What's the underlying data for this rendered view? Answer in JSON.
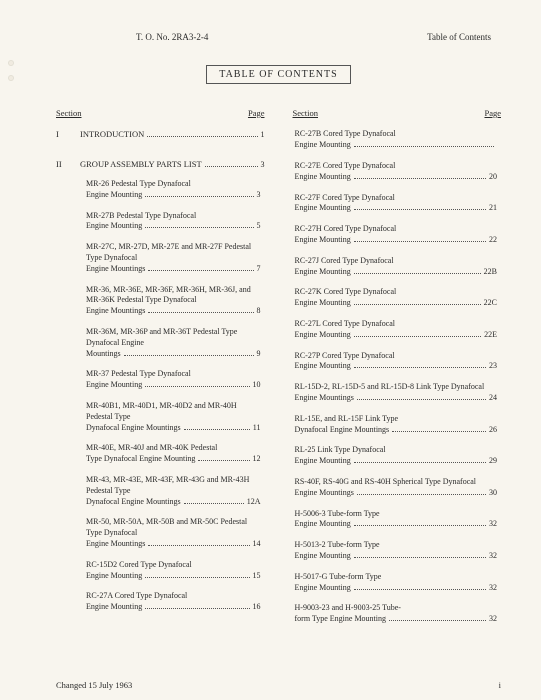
{
  "header": {
    "to_number": "T. O. No. 2RA3-2-4",
    "right_label": "Table of Contents"
  },
  "title": "TABLE OF CONTENTS",
  "column_headers": {
    "section": "Section",
    "page": "Page"
  },
  "sections": [
    {
      "num": "I",
      "title": "INTRODUCTION",
      "page": "1"
    },
    {
      "num": "II",
      "title": "GROUP ASSEMBLY PARTS LIST",
      "page": "3"
    }
  ],
  "left_entries": [
    {
      "text": "MR-26 Pedestal Type Dynafocal",
      "last": "Engine Mounting",
      "page": "3"
    },
    {
      "text": "MR-27B Pedestal Type Dynafocal",
      "last": "Engine Mounting",
      "page": "5"
    },
    {
      "text": "MR-27C, MR-27D, MR-27E and MR-27F Pedestal Type Dynafocal",
      "last": "Engine Mountings",
      "page": "7"
    },
    {
      "text": "MR-36, MR-36E, MR-36F, MR-36H, MR-36J, and MR-36K Pedestal Type Dynafocal",
      "last": "Engine Mountings",
      "page": "8"
    },
    {
      "text": "MR-36M, MR-36P and MR-36T Pedestal Type Dynafocal Engine",
      "last": "Mountings",
      "page": "9"
    },
    {
      "text": "MR-37 Pedestal Type Dynafocal",
      "last": "Engine Mounting",
      "page": "10"
    },
    {
      "text": "MR-40B1, MR-40D1, MR-40D2 and MR-40H Pedestal Type",
      "last": "Dynafocal Engine Mountings",
      "page": "11"
    },
    {
      "text": "MR-40E, MR-40J and MR-40K Pedestal",
      "last": "Type Dynafocal Engine Mounting",
      "page": "12"
    },
    {
      "text": "MR-43, MR-43E, MR-43F, MR-43G and MR-43H Pedestal Type",
      "last": "Dynafocal Engine Mountings",
      "page": "12A"
    },
    {
      "text": "MR-50, MR-50A, MR-50B and MR-50C Pedestal Type Dynafocal",
      "last": "Engine Mountings",
      "page": "14"
    },
    {
      "text": "RC-15D2 Cored Type Dynafocal",
      "last": "Engine Mounting",
      "page": "15"
    },
    {
      "text": "RC-27A Cored Type Dynafocal",
      "last": "Engine Mounting",
      "page": "16"
    }
  ],
  "right_entries": [
    {
      "text": "RC-27B Cored Type Dynafocal",
      "last": "Engine Mounting",
      "page": ""
    },
    {
      "text": "RC-27E Cored Type Dynafocal",
      "last": "Engine Mounting",
      "page": "20"
    },
    {
      "text": "RC-27F Cored Type Dynafocal",
      "last": "Engine Mounting",
      "page": "21"
    },
    {
      "text": "RC-27H Cored Type Dynafocal",
      "last": "Engine Mounting",
      "page": "22"
    },
    {
      "text": "RC-27J Cored Type Dynafocal",
      "last": "Engine Mounting",
      "page": "22B"
    },
    {
      "text": "RC-27K Cored Type Dynafocal",
      "last": "Engine Mounting",
      "page": "22C"
    },
    {
      "text": "RC-27L Cored Type Dynafocal",
      "last": "Engine Mounting",
      "page": "22E"
    },
    {
      "text": "RC-27P Cored Type Dynafocal",
      "last": "Engine Mounting",
      "page": "23"
    },
    {
      "text": "RL-15D-2, RL-15D-5 and RL-15D-8 Link Type Dynafocal",
      "last": "Engine Mountings",
      "page": "24"
    },
    {
      "text": "RL-15E, and RL-15F Link Type",
      "last": "Dynafocal Engine Mountings",
      "page": "26"
    },
    {
      "text": "RL-25 Link Type Dynafocal",
      "last": "Engine Mounting",
      "page": "29"
    },
    {
      "text": "RS-40F, RS-40G and RS-40H Spherical Type Dynafocal",
      "last": "Engine Mountings",
      "page": "30"
    },
    {
      "text": "H-5006-3 Tube-form Type",
      "last": "Engine Mounting",
      "page": "32"
    },
    {
      "text": "H-5013-2 Tube-form Type",
      "last": "Engine Mounting",
      "page": "32"
    },
    {
      "text": "H-5017-G Tube-form Type",
      "last": "Engine Mounting",
      "page": "32"
    },
    {
      "text": "H-9003-23 and H-9003-25 Tube-",
      "last": "form Type Engine Mounting",
      "page": "32"
    }
  ],
  "footer": {
    "changed": "Changed 15 July 1963",
    "page_num": "i"
  }
}
